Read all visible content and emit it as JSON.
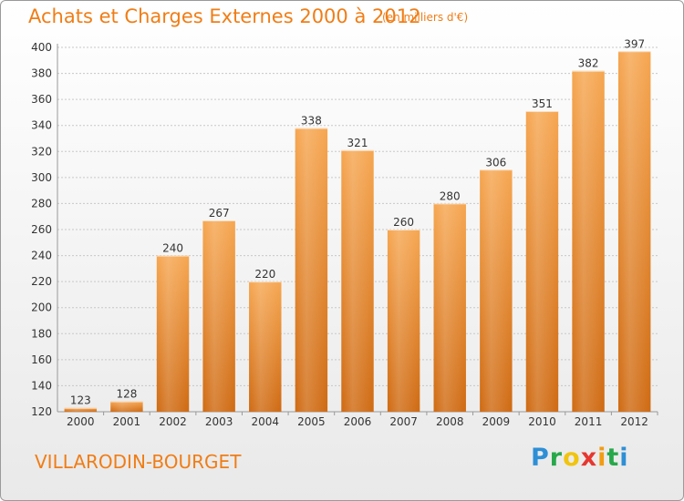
{
  "title": "Achats et Charges Externes 2000 à 2012",
  "unit_note": "(en milliers d'€)",
  "city": "VILLARODIN-BOURGET",
  "logo": "Proxiti",
  "colors": {
    "accent": "#f07d16",
    "bar_top": "#f6a650",
    "bar_bottom": "#cf6a12"
  },
  "chart_data": {
    "type": "bar",
    "title": "Achats et Charges Externes 2000 à 2012",
    "subtitle": "(en milliers d'€)",
    "categories": [
      "2000",
      "2001",
      "2002",
      "2003",
      "2004",
      "2005",
      "2006",
      "2007",
      "2008",
      "2009",
      "2010",
      "2011",
      "2012"
    ],
    "values": [
      123,
      128,
      240,
      267,
      220,
      338,
      321,
      260,
      280,
      306,
      351,
      382,
      397
    ],
    "ylim": [
      120,
      400
    ],
    "yticks": [
      120,
      140,
      160,
      180,
      200,
      220,
      240,
      260,
      280,
      300,
      320,
      340,
      360,
      380,
      400
    ],
    "grid": true,
    "data_labels": true
  }
}
